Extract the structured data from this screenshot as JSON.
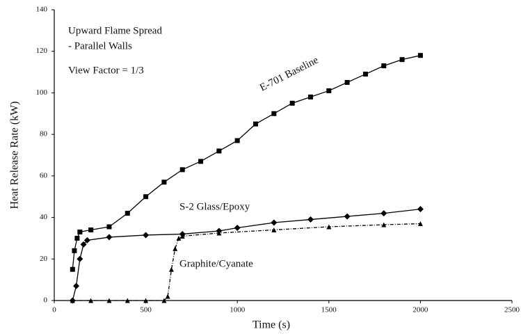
{
  "chart_data": {
    "type": "line",
    "annotations": [
      "Upward Flame Spread",
      "- Parallel Walls",
      "View Factor = 1/3"
    ],
    "x_label": "Time (s)",
    "y_label": "Heat Release Rate (kW)",
    "xlim": [
      0,
      2500
    ],
    "xticks": [
      0,
      500,
      1000,
      1500,
      2000,
      2500
    ],
    "ylim": [
      0,
      140
    ],
    "yticks": [
      0,
      20,
      40,
      60,
      80,
      100,
      120,
      140
    ],
    "series": [
      {
        "name": "E-701 Baseline",
        "color": "#000000",
        "marker": "square",
        "x": [
          100,
          110,
          125,
          140,
          200,
          300,
          400,
          500,
          600,
          700,
          800,
          900,
          1000,
          1100,
          1200,
          1300,
          1400,
          1500,
          1600,
          1700,
          1800,
          1900,
          2000
        ],
        "values": [
          15,
          24,
          30,
          33,
          34,
          35.5,
          42,
          50,
          57,
          63,
          67,
          72,
          77,
          85,
          90,
          95,
          98,
          101,
          105,
          109,
          113,
          116,
          118
        ]
      },
      {
        "name": "S-2 Glass/Epoxy",
        "color": "#000000",
        "marker": "diamond",
        "x": [
          100,
          120,
          140,
          160,
          180,
          300,
          500,
          700,
          900,
          1000,
          1200,
          1400,
          1600,
          1800,
          2000
        ],
        "values": [
          0,
          7,
          20,
          27,
          29,
          30.5,
          31.5,
          32,
          33.5,
          35,
          37.5,
          39,
          40.5,
          42,
          44
        ]
      },
      {
        "name": "Graphite/Cyanate",
        "color": "#000000",
        "marker": "triangle",
        "x": [
          100,
          200,
          300,
          400,
          500,
          600,
          620,
          640,
          660,
          680,
          700,
          900,
          1200,
          1500,
          1800,
          2000
        ],
        "values": [
          0,
          0,
          0,
          0,
          0,
          0,
          2,
          15,
          25,
          30,
          31,
          32.5,
          34,
          35.5,
          36.5,
          37
        ]
      }
    ]
  }
}
